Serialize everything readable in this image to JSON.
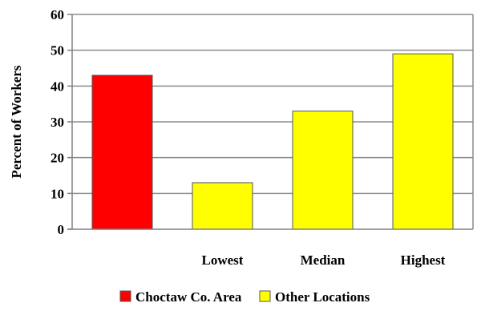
{
  "chart_data": {
    "type": "bar",
    "categories": [
      "",
      "Lowest",
      "Median",
      "Highest"
    ],
    "values": [
      43,
      13,
      33,
      49
    ],
    "bar_series": [
      "Choctaw Co. Area",
      "Other Locations",
      "Other Locations",
      "Other Locations"
    ],
    "title": "",
    "xlabel": "",
    "ylabel": "Percent of Workers",
    "ylim": [
      0,
      60
    ],
    "yticks": [
      0,
      10,
      20,
      30,
      40,
      50,
      60
    ],
    "grid": true,
    "legend_position": "bottom",
    "series": [
      {
        "name": "Choctaw Co. Area",
        "color": "#ff0000"
      },
      {
        "name": "Other Locations",
        "color": "#ffff00"
      }
    ]
  }
}
